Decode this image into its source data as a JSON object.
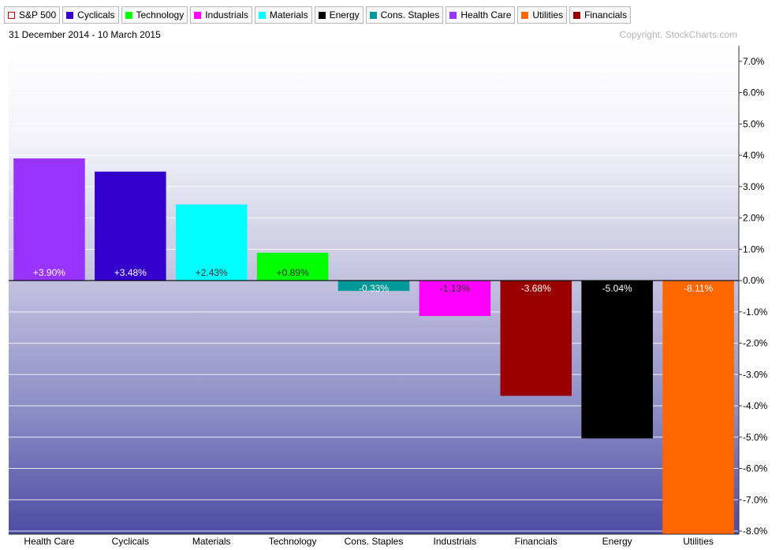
{
  "legend": [
    {
      "label": "S&P 500",
      "color": "#cc0000",
      "hollow": true
    },
    {
      "label": "Cyclicals",
      "color": "#3300cc"
    },
    {
      "label": "Technology",
      "color": "#00ff00"
    },
    {
      "label": "Industrials",
      "color": "#ff00ff"
    },
    {
      "label": "Materials",
      "color": "#00ffff"
    },
    {
      "label": "Energy",
      "color": "#000000"
    },
    {
      "label": "Cons. Staples",
      "color": "#009999"
    },
    {
      "label": "Health Care",
      "color": "#9933ff"
    },
    {
      "label": "Utilities",
      "color": "#ff6600"
    },
    {
      "label": "Financials",
      "color": "#990000"
    }
  ],
  "header": {
    "date_range": "31 December 2014 - 10 March 2015",
    "copyright": "Copyright, StockCharts.com"
  },
  "chart_data": {
    "type": "bar",
    "categories": [
      "Health Care",
      "Cyclicals",
      "Materials",
      "Technology",
      "Cons. Staples",
      "Industrials",
      "Financials",
      "Energy",
      "Utilities"
    ],
    "values": [
      3.9,
      3.48,
      2.43,
      0.89,
      -0.33,
      -1.13,
      -3.68,
      -5.04,
      -8.11
    ],
    "value_labels": [
      "+3.90%",
      "+3.48%",
      "+2.43%",
      "+0.89%",
      "-0.33%",
      "-1.13%",
      "-3.68%",
      "-5.04%",
      "-8.11%"
    ],
    "colors": [
      "#9933ff",
      "#3300cc",
      "#00ffff",
      "#00ff00",
      "#009999",
      "#ff00ff",
      "#990000",
      "#000000",
      "#ff6600"
    ],
    "label_colors": [
      "#ffffff",
      "#ffffff",
      "#333333",
      "#333333",
      "#ffffff",
      "#333333",
      "#ffffff",
      "#ffffff",
      "#ffffff"
    ],
    "y_ticks": [
      7,
      6,
      5,
      4,
      3,
      2,
      1,
      0,
      -1,
      -2,
      -3,
      -4,
      -5,
      -6,
      -7,
      -8
    ],
    "y_tick_labels": [
      "7.0%",
      "6.0%",
      "5.0%",
      "4.0%",
      "3.0%",
      "2.0%",
      "1.0%",
      "0.0%",
      "-1.0%",
      "-2.0%",
      "-3.0%",
      "-4.0%",
      "-5.0%",
      "-6.0%",
      "-7.0%",
      "-8.0%"
    ],
    "ylim": [
      -8.1,
      7.5
    ],
    "ylabel_position": "right",
    "grid": true,
    "title": "",
    "xlabel": "",
    "ylabel": ""
  }
}
